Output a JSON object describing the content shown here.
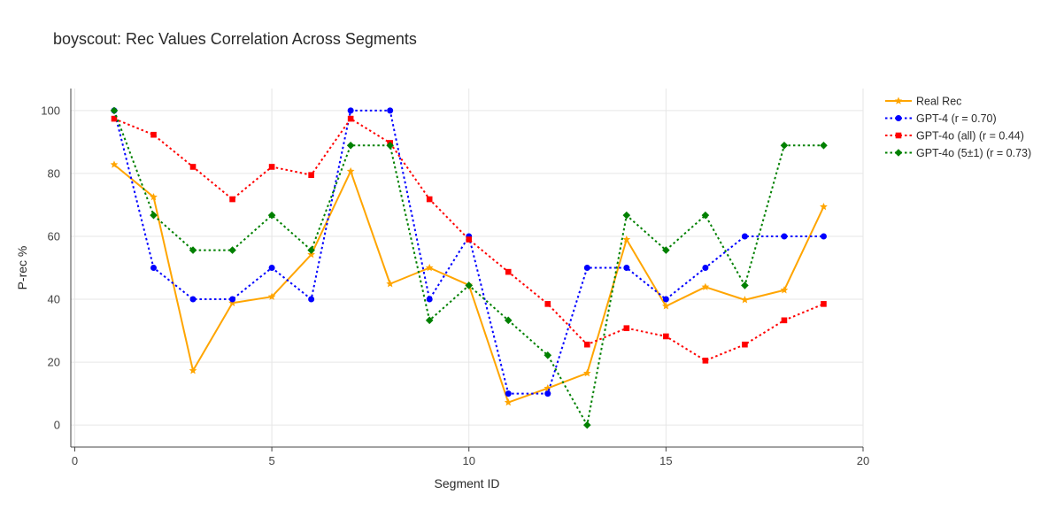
{
  "chart_data": {
    "type": "line",
    "title": "boyscout: Rec Values Correlation Across Segments",
    "xlabel": "Segment ID",
    "ylabel": "P-rec %",
    "xlim": [
      -0.1,
      20
    ],
    "ylim": [
      -7,
      107
    ],
    "xticks": [
      0,
      5,
      10,
      15,
      20
    ],
    "yticks": [
      0,
      20,
      40,
      60,
      80,
      100
    ],
    "grid": true,
    "legend_position": "top-right (outside plot)",
    "x": [
      1,
      2,
      3,
      4,
      5,
      6,
      7,
      8,
      9,
      10,
      11,
      12,
      13,
      14,
      15,
      16,
      17,
      18,
      19
    ],
    "series": [
      {
        "name": "Real Rec",
        "color": "#FFA500",
        "dash": "solid",
        "marker": "star",
        "values": [
          82.8,
          72.5,
          17.3,
          38.8,
          40.8,
          54.2,
          80.7,
          44.9,
          50.0,
          44.5,
          7.2,
          11.7,
          16.5,
          59.0,
          37.8,
          43.9,
          39.8,
          42.9,
          69.4
        ]
      },
      {
        "name": "GPT-4 (r = 0.70)",
        "color": "#0000FF",
        "dash": "dot",
        "marker": "circle",
        "values": [
          100,
          50,
          40,
          40,
          50,
          40,
          100,
          100,
          40,
          60,
          10,
          10,
          50,
          50,
          40,
          50,
          60,
          60,
          60
        ]
      },
      {
        "name": "GPT-4o (all) (r = 0.44)",
        "color": "#FF0000",
        "dash": "dot",
        "marker": "square",
        "values": [
          97.4,
          92.3,
          82.1,
          71.8,
          82.1,
          79.5,
          97.4,
          89.7,
          71.8,
          59.0,
          48.7,
          38.5,
          25.6,
          30.8,
          28.2,
          20.5,
          25.6,
          33.3,
          38.5
        ]
      },
      {
        "name": "GPT-4o (5±1) (r = 0.73)",
        "color": "#008000",
        "dash": "dot",
        "marker": "diamond",
        "values": [
          100,
          66.7,
          55.6,
          55.6,
          66.7,
          55.6,
          88.9,
          88.9,
          33.3,
          44.4,
          33.3,
          22.2,
          0,
          66.7,
          55.6,
          66.7,
          44.4,
          88.9,
          88.9
        ]
      }
    ]
  }
}
